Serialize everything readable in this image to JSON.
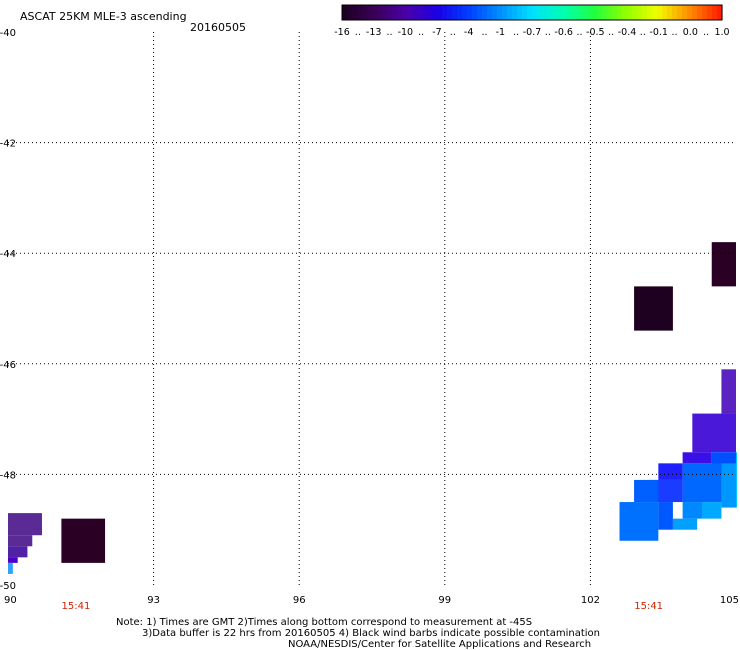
{
  "chart_data": {
    "type": "heatmap",
    "title": "ASCAT 25KM MLE-3 ascending",
    "date": "20160505",
    "x_ticks": [
      "90",
      "93",
      "96",
      "99",
      "102",
      "105"
    ],
    "y_ticks": [
      "-40",
      "-42",
      "-44",
      "-46",
      "-48",
      "-50"
    ],
    "xlim": [
      90,
      105
    ],
    "ylim": [
      -50,
      -40
    ],
    "grid": true,
    "time_labels": [
      {
        "x": 91.4,
        "text": "15:41"
      },
      {
        "x": 103.2,
        "text": "15:41"
      }
    ],
    "colorbar": {
      "labels": [
        "-16",
        "-13",
        "-10",
        "-7",
        "-4",
        "-1",
        "-0.7",
        "-0.6",
        "-0.5",
        "-0.4",
        "-0.1",
        "0.0",
        "1.0"
      ],
      "colors": [
        "#1e0022",
        "#3a005a",
        "#4a00a8",
        "#1a00e8",
        "#0040ff",
        "#0090ff",
        "#00e0ff",
        "#00ffb0",
        "#20ff40",
        "#90ff00",
        "#f0ff00",
        "#ff9000",
        "#ff2000"
      ]
    },
    "cells": [
      {
        "lon0": 104.5,
        "lat0": -44.6,
        "lon1": 105.3,
        "lat1": -43.8,
        "color": "#2a0025"
      },
      {
        "lon0": 102.9,
        "lat0": -45.4,
        "lon1": 103.7,
        "lat1": -44.6,
        "color": "#1e0020"
      },
      {
        "lon0": 104.7,
        "lat0": -46.9,
        "lon1": 105.4,
        "lat1": -46.1,
        "color": "#5a22c0"
      },
      {
        "lon0": 104.1,
        "lat0": -47.6,
        "lon1": 105.4,
        "lat1": -46.9,
        "color": "#4a18d8"
      },
      {
        "lon0": 103.9,
        "lat0": -47.8,
        "lon1": 104.5,
        "lat1": -47.6,
        "color": "#3a10e6"
      },
      {
        "lon0": 104.5,
        "lat0": -48.0,
        "lon1": 105.4,
        "lat1": -47.6,
        "color": "#0050ff"
      },
      {
        "lon0": 105.0,
        "lat0": -48.6,
        "lon1": 105.4,
        "lat1": -47.6,
        "color": "#00c8ff"
      },
      {
        "lon0": 104.7,
        "lat0": -48.6,
        "lon1": 105.0,
        "lat1": -47.8,
        "color": "#0098ff"
      },
      {
        "lon0": 103.4,
        "lat0": -48.1,
        "lon1": 103.9,
        "lat1": -47.8,
        "color": "#2020ff"
      },
      {
        "lon0": 103.9,
        "lat0": -48.5,
        "lon1": 104.7,
        "lat1": -47.8,
        "color": "#0068ff"
      },
      {
        "lon0": 104.3,
        "lat0": -48.8,
        "lon1": 104.7,
        "lat1": -48.5,
        "color": "#00a8ff"
      },
      {
        "lon0": 103.9,
        "lat0": -48.8,
        "lon1": 104.3,
        "lat1": -48.5,
        "color": "#0088ff"
      },
      {
        "lon0": 103.7,
        "lat0": -49.0,
        "lon1": 104.2,
        "lat1": -48.8,
        "color": "#00a0ff"
      },
      {
        "lon0": 103.2,
        "lat0": -48.5,
        "lon1": 103.9,
        "lat1": -48.1,
        "color": "#1a3cff"
      },
      {
        "lon0": 102.9,
        "lat0": -48.5,
        "lon1": 103.4,
        "lat1": -48.1,
        "color": "#0060ff"
      },
      {
        "lon0": 102.6,
        "lat0": -49.2,
        "lon1": 103.4,
        "lat1": -48.5,
        "color": "#0070ff"
      },
      {
        "lon0": 103.4,
        "lat0": -49.0,
        "lon1": 103.7,
        "lat1": -48.5,
        "color": "#0058ff"
      },
      {
        "lon0": 90.0,
        "lat0": -49.1,
        "lon1": 90.7,
        "lat1": -48.7,
        "color": "#5a2a95"
      },
      {
        "lon0": 90.0,
        "lat0": -49.3,
        "lon1": 90.5,
        "lat1": -49.1,
        "color": "#5a2a95"
      },
      {
        "lon0": 90.0,
        "lat0": -49.5,
        "lon1": 90.4,
        "lat1": -49.3,
        "color": "#5020a5"
      },
      {
        "lon0": 90.0,
        "lat0": -49.6,
        "lon1": 90.2,
        "lat1": -49.5,
        "color": "#4a00c8"
      },
      {
        "lon0": 90.0,
        "lat0": -49.8,
        "lon1": 90.1,
        "lat1": -49.6,
        "color": "#30a0ff"
      },
      {
        "lon0": 91.1,
        "lat0": -49.6,
        "lon1": 92.0,
        "lat1": -48.8,
        "color": "#2a0025"
      }
    ]
  },
  "notes": {
    "line1": "Note: 1) Times are GMT 2)Times along bottom correspond to measurement at -45S",
    "line2": "3)Data buffer is 22 hrs from 20160505 4) Black wind barbs indicate possible contamination",
    "line3": "NOAA/NESDIS/Center for Satellite Applications and Research"
  }
}
